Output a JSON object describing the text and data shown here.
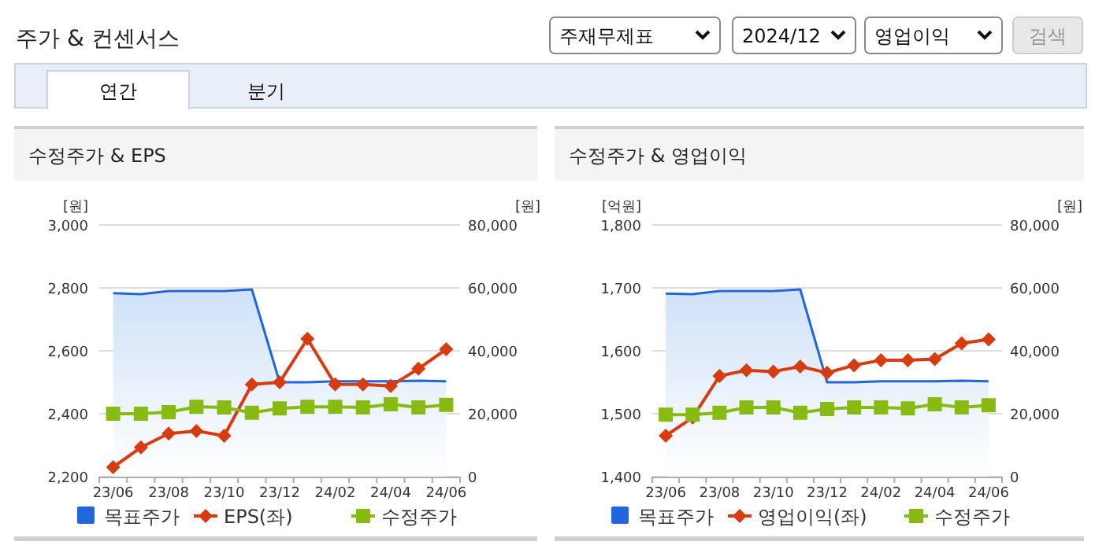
{
  "chart_data": [
    {
      "type": "other",
      "title": "주가 & 컨센서스",
      "annotations": [
        "주재무제표",
        "2024/12",
        "영업이익",
        "검색",
        "연간",
        "분기"
      ]
    },
    {
      "type": "line",
      "title": "수정주가 & EPS",
      "ylabel": "[원]",
      "y2label": "[원]",
      "categories": [
        "23/06",
        null,
        "23/08",
        null,
        "23/10",
        null,
        "23/12",
        null,
        "24/02",
        null,
        "24/04",
        null,
        "24/06"
      ],
      "ylim": [
        2200,
        3000
      ],
      "yticks": [
        {
          "value": 2200,
          "label": "2,200"
        },
        {
          "value": 2400,
          "label": "2,400"
        },
        {
          "value": 2600,
          "label": "2,600"
        },
        {
          "value": 2800,
          "label": "2,800"
        },
        {
          "value": 3000,
          "label": "3,000"
        }
      ],
      "y2lim": [
        0,
        80000
      ],
      "y2ticks": [
        0,
        {
          "value": 20000,
          "label": "20,000"
        },
        {
          "value": 40000,
          "label": "40,000"
        },
        {
          "value": 60000,
          "label": "60,000"
        },
        {
          "value": 80000,
          "label": "80,000"
        }
      ],
      "grid": "y",
      "legend": "bottom",
      "series": [
        {
          "name": "목표주가",
          "type": "area",
          "axis": "y2",
          "color": "#2266dd",
          "values": [
            58300,
            58000,
            59000,
            59000,
            59000,
            59500,
            30000,
            30000,
            30300,
            30300,
            30300,
            30500,
            30300
          ]
        },
        {
          "name": "EPS(좌)",
          "type": "line",
          "color": "#d63c10",
          "marker": "diamond",
          "values": [
            2230,
            2293,
            2337,
            2345,
            2330,
            2493,
            2500,
            2638,
            2493,
            2493,
            2488,
            2543,
            2605
          ]
        },
        {
          "name": "수정주가",
          "type": "line",
          "axis": "y2",
          "color": "#88bb11",
          "marker": "square",
          "values": [
            20000,
            20000,
            20500,
            22200,
            22000,
            20300,
            21700,
            22200,
            22200,
            22000,
            23000,
            22000,
            22800
          ]
        }
      ]
    },
    {
      "type": "line",
      "title": "수정주가 & 영업이익",
      "ylabel": "[억원]",
      "y2label": "[원]",
      "categories": [
        "23/06",
        null,
        "23/08",
        null,
        "23/10",
        null,
        "23/12",
        null,
        "24/02",
        null,
        "24/04",
        null,
        "24/06"
      ],
      "ylim": [
        1400,
        1800
      ],
      "yticks": [
        {
          "value": 1400,
          "label": "1,400"
        },
        {
          "value": 1500,
          "label": "1,500"
        },
        {
          "value": 1600,
          "label": "1,600"
        },
        {
          "value": 1700,
          "label": "1,700"
        },
        {
          "value": 1800,
          "label": "1,800"
        }
      ],
      "y2lim": [
        0,
        80000
      ],
      "y2ticks": [
        0,
        {
          "value": 20000,
          "label": "20,000"
        },
        {
          "value": 40000,
          "label": "40,000"
        },
        {
          "value": 60000,
          "label": "60,000"
        },
        {
          "value": 80000,
          "label": "80,000"
        }
      ],
      "grid": "y",
      "legend": "bottom",
      "series": [
        {
          "name": "목표주가",
          "type": "area",
          "axis": "y2",
          "color": "#2266dd",
          "values": [
            58200,
            58000,
            59000,
            59000,
            59000,
            59500,
            30000,
            30000,
            30300,
            30300,
            30300,
            30500,
            30300
          ]
        },
        {
          "name": "영업이익(좌)",
          "type": "line",
          "color": "#d63c10",
          "marker": "diamond",
          "values": [
            1465,
            1494,
            1560,
            1569,
            1567,
            1575,
            1565,
            1577,
            1585,
            1585,
            1587,
            1612,
            1618
          ]
        },
        {
          "name": "수정주가",
          "type": "line",
          "axis": "y2",
          "color": "#88bb11",
          "marker": "square",
          "values": [
            19700,
            19700,
            20300,
            22000,
            22000,
            20300,
            21500,
            22000,
            22000,
            21700,
            23000,
            22000,
            22700
          ]
        }
      ]
    }
  ]
}
